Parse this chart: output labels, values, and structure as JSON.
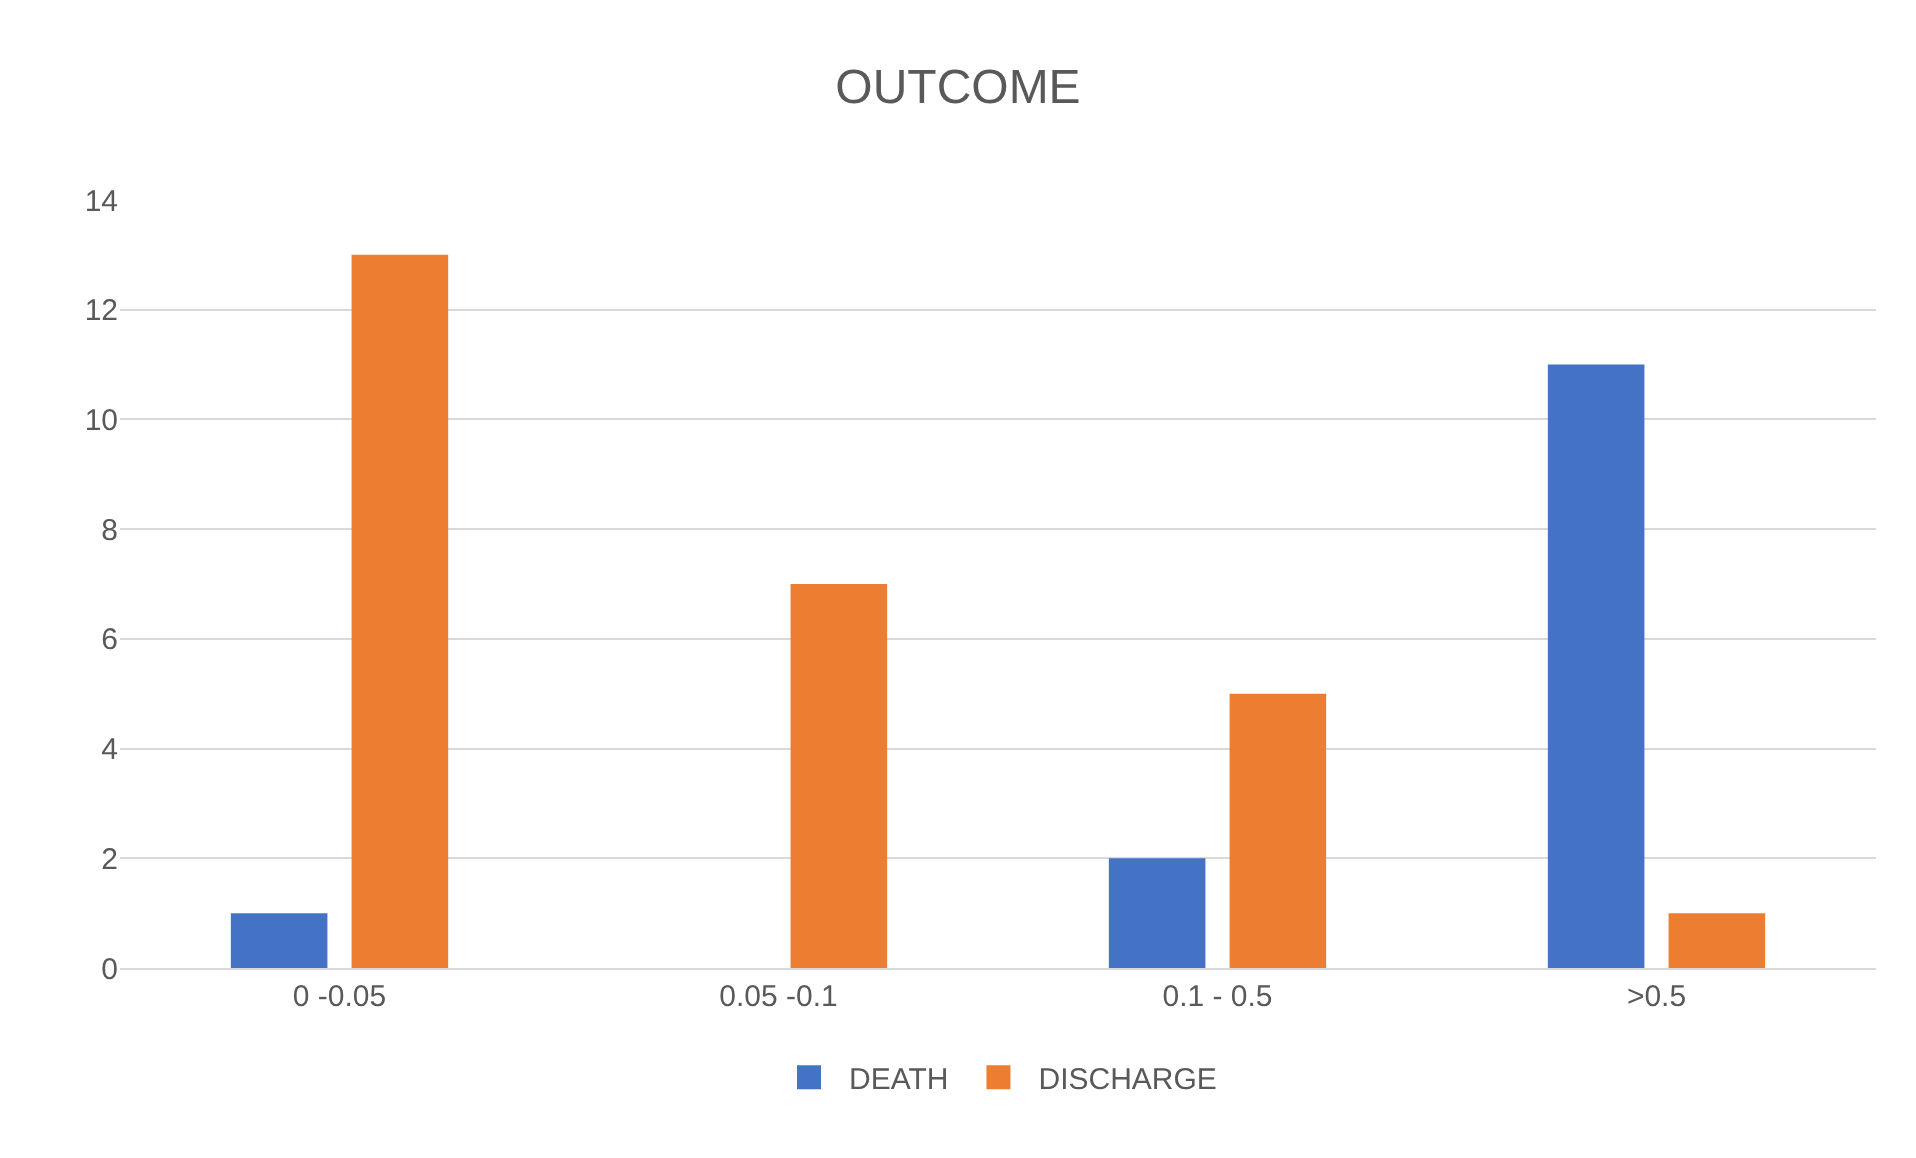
{
  "chart_data": {
    "type": "bar",
    "title": "OUTCOME",
    "categories": [
      "0 -0.05",
      "0.05 -0.1",
      "0.1 - 0.5",
      ">0.5"
    ],
    "series": [
      {
        "name": "DEATH",
        "color": "#4472c4",
        "values": [
          1,
          0,
          2,
          11
        ]
      },
      {
        "name": "DISCHARGE",
        "color": "#ed7d31",
        "values": [
          13,
          7,
          5,
          1
        ]
      }
    ],
    "ylim": [
      0,
      14
    ],
    "yticks": [
      0,
      2,
      4,
      6,
      8,
      10,
      12,
      14
    ],
    "grid": "y",
    "legend": "bottom"
  }
}
